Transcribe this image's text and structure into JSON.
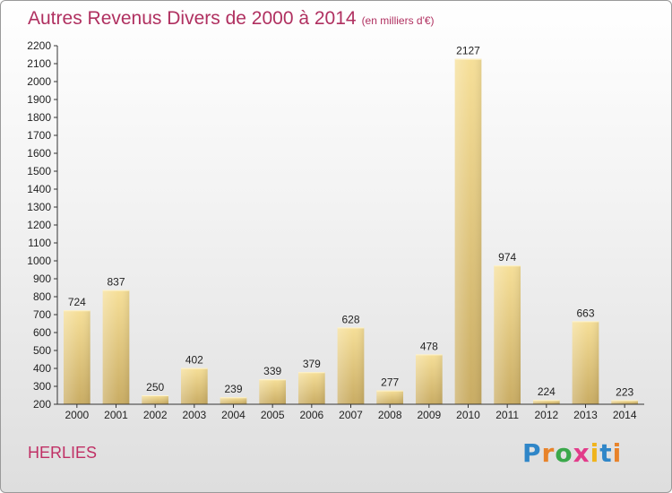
{
  "title": "Autres Revenus Divers de 2000 à 2014",
  "subtitle": "(en milliers d'€)",
  "commune": "HERLIES",
  "logo": {
    "letters": [
      "P",
      "r",
      "o",
      "x",
      "i",
      "t",
      "i"
    ],
    "colors": [
      "#2f86c8",
      "#e8832a",
      "#3aa84a",
      "#e23c8a",
      "#f0b41c",
      "#2f86c8",
      "#e8832a"
    ]
  },
  "colors": {
    "title": "#b03060",
    "bar_light": "#f6df98",
    "bar_dark": "#c9ac63",
    "axis": "#333333"
  },
  "chart_data": {
    "type": "bar",
    "title": "Autres Revenus Divers de 2000 à 2014",
    "subtitle": "(en milliers d'€)",
    "categories": [
      "2000",
      "2001",
      "2002",
      "2003",
      "2004",
      "2005",
      "2006",
      "2007",
      "2008",
      "2009",
      "2010",
      "2011",
      "2012",
      "2013",
      "2014"
    ],
    "values": [
      724,
      837,
      250,
      402,
      239,
      339,
      379,
      628,
      277,
      478,
      2127,
      974,
      224,
      663,
      223
    ],
    "ylim": [
      200,
      2200
    ],
    "yticks": [
      200,
      300,
      400,
      500,
      600,
      700,
      800,
      900,
      1000,
      1100,
      1200,
      1300,
      1400,
      1500,
      1600,
      1700,
      1800,
      1900,
      2000,
      2100,
      2200
    ],
    "grid": false,
    "legend": "none"
  }
}
